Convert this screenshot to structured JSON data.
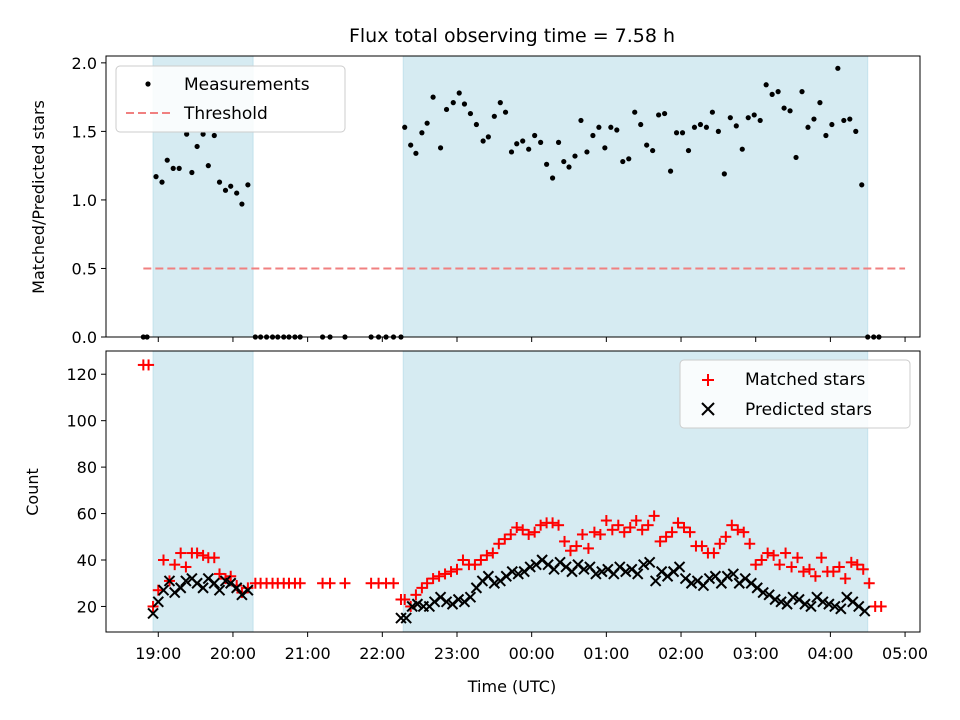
{
  "chart_data": [
    {
      "type": "scatter",
      "title": "Flux total observing time = 7.58 h",
      "xlabel": "",
      "ylabel": "Matched/Predicted stars",
      "xlim": [
        18.3,
        29.2
      ],
      "ylim": [
        0,
        2.05
      ],
      "yticks": [
        0.0,
        0.5,
        1.0,
        1.5,
        2.0
      ],
      "ytick_labels": [
        "0.0",
        "0.5",
        "1.0",
        "1.5",
        "2.0"
      ],
      "shaded_intervals": [
        [
          18.93,
          20.27
        ],
        [
          22.28,
          28.5
        ]
      ],
      "legend": {
        "placement": "upper-left",
        "entries": [
          "Measurements",
          "Threshold"
        ]
      },
      "threshold": {
        "name": "Threshold",
        "x": [
          18.8,
          29.0
        ],
        "y": 0.5,
        "color": "#f08080"
      },
      "series": [
        {
          "name": "Measurements",
          "marker": "dot",
          "color": "#000000",
          "x": [
            18.8,
            18.85,
            18.97,
            19.05,
            19.12,
            19.2,
            19.28,
            19.38,
            19.45,
            19.52,
            19.6,
            19.67,
            19.75,
            19.82,
            19.9,
            19.97,
            20.05,
            20.12,
            20.2,
            20.3,
            20.37,
            20.45,
            20.53,
            20.6,
            20.68,
            20.75,
            20.83,
            20.9,
            21.2,
            21.3,
            21.5,
            21.85,
            21.95,
            22.05,
            22.15,
            22.25,
            22.3,
            22.38,
            22.45,
            22.53,
            22.6,
            22.68,
            22.78,
            22.86,
            22.95,
            23.03,
            23.1,
            23.18,
            23.26,
            23.35,
            23.42,
            23.5,
            23.58,
            23.65,
            23.73,
            23.8,
            23.88,
            23.96,
            24.04,
            24.12,
            24.2,
            24.28,
            24.36,
            24.43,
            24.5,
            24.58,
            24.66,
            24.74,
            24.82,
            24.9,
            24.98,
            25.06,
            25.14,
            25.22,
            25.3,
            25.38,
            25.46,
            25.54,
            25.62,
            25.7,
            25.78,
            25.86,
            25.94,
            26.02,
            26.1,
            26.18,
            26.26,
            26.34,
            26.42,
            26.5,
            26.58,
            26.66,
            26.74,
            26.82,
            26.9,
            26.98,
            27.06,
            27.14,
            27.22,
            27.3,
            27.38,
            27.46,
            27.54,
            27.62,
            27.7,
            27.78,
            27.86,
            27.94,
            28.02,
            28.1,
            28.18,
            28.26,
            28.34,
            28.42,
            28.5,
            28.58,
            28.65
          ],
          "y": [
            0,
            0,
            1.17,
            1.13,
            1.29,
            1.23,
            1.23,
            1.48,
            1.2,
            1.39,
            1.48,
            1.25,
            1.47,
            1.13,
            1.07,
            1.1,
            1.05,
            0.97,
            1.11,
            0,
            0,
            0,
            0,
            0,
            0,
            0,
            0,
            0,
            0,
            0,
            0,
            0,
            0,
            0,
            0,
            0,
            1.53,
            1.4,
            1.34,
            1.49,
            1.56,
            1.75,
            1.38,
            1.66,
            1.71,
            1.78,
            1.7,
            1.63,
            1.55,
            1.43,
            1.46,
            1.61,
            1.71,
            1.64,
            1.35,
            1.41,
            1.43,
            1.37,
            1.47,
            1.42,
            1.26,
            1.16,
            1.42,
            1.28,
            1.24,
            1.32,
            1.58,
            1.35,
            1.47,
            1.53,
            1.38,
            1.53,
            1.51,
            1.28,
            1.3,
            1.64,
            1.55,
            1.4,
            1.36,
            1.62,
            1.63,
            1.21,
            1.49,
            1.49,
            1.36,
            1.53,
            1.55,
            1.53,
            1.64,
            1.5,
            1.19,
            1.6,
            1.54,
            1.37,
            1.6,
            1.62,
            1.58,
            1.84,
            1.77,
            1.79,
            1.67,
            1.65,
            1.31,
            1.79,
            1.53,
            1.59,
            1.71,
            1.47,
            1.55,
            1.96,
            1.58,
            1.59,
            1.5,
            1.11,
            0,
            0,
            0
          ]
        }
      ]
    },
    {
      "type": "scatter",
      "title": "",
      "xlabel": "Time (UTC)",
      "ylabel": "Count",
      "xlim": [
        18.3,
        29.2
      ],
      "ylim": [
        9,
        130
      ],
      "yticks": [
        20,
        40,
        60,
        80,
        100,
        120
      ],
      "ytick_labels": [
        "20",
        "40",
        "60",
        "80",
        "100",
        "120"
      ],
      "xticks": [
        19,
        20,
        21,
        22,
        23,
        24,
        25,
        26,
        27,
        28,
        29
      ],
      "xtick_labels": [
        "19:00",
        "20:00",
        "21:00",
        "22:00",
        "23:00",
        "00:00",
        "01:00",
        "02:00",
        "03:00",
        "04:00",
        "05:00"
      ],
      "shaded_intervals": [
        [
          18.93,
          20.27
        ],
        [
          22.28,
          28.5
        ]
      ],
      "legend": {
        "placement": "upper-right",
        "entries": [
          "Matched stars",
          "Predicted stars"
        ]
      },
      "series": [
        {
          "name": "Matched stars",
          "marker": "plus",
          "color": "#ff0000",
          "x": [
            18.8,
            18.87,
            18.93,
            19.0,
            19.07,
            19.15,
            19.22,
            19.3,
            19.37,
            19.45,
            19.52,
            19.6,
            19.67,
            19.75,
            19.82,
            19.9,
            19.97,
            20.05,
            20.12,
            20.2,
            20.3,
            20.37,
            20.45,
            20.53,
            20.6,
            20.68,
            20.75,
            20.83,
            20.9,
            21.2,
            21.3,
            21.5,
            21.85,
            21.95,
            22.05,
            22.15,
            22.25,
            22.3,
            22.38,
            22.45,
            22.53,
            22.6,
            22.68,
            22.76,
            22.84,
            22.92,
            23.0,
            23.08,
            23.16,
            23.24,
            23.32,
            23.4,
            23.48,
            23.56,
            23.64,
            23.72,
            23.8,
            23.88,
            23.96,
            24.04,
            24.12,
            24.2,
            24.28,
            24.36,
            24.44,
            24.52,
            24.6,
            24.68,
            24.76,
            24.84,
            24.92,
            25.0,
            25.08,
            25.16,
            25.24,
            25.32,
            25.4,
            25.48,
            25.56,
            25.64,
            25.72,
            25.8,
            25.88,
            25.96,
            26.04,
            26.12,
            26.2,
            26.28,
            26.36,
            26.44,
            26.52,
            26.6,
            26.68,
            26.76,
            26.84,
            26.92,
            27.0,
            27.08,
            27.16,
            27.24,
            27.32,
            27.4,
            27.48,
            27.56,
            27.64,
            27.72,
            27.8,
            27.88,
            27.96,
            28.04,
            28.12,
            28.2,
            28.28,
            28.36,
            28.44,
            28.52,
            28.6,
            28.68
          ],
          "y": [
            124,
            124,
            20,
            27,
            40,
            31,
            38,
            43,
            37,
            43,
            43,
            42,
            41,
            41,
            34,
            32,
            33,
            29,
            26,
            28,
            30,
            30,
            30,
            30,
            30,
            30,
            30,
            30,
            30,
            30,
            30,
            30,
            30,
            30,
            30,
            30,
            23,
            23,
            20,
            25,
            28,
            30,
            32,
            33,
            34,
            35,
            36,
            40,
            38,
            38,
            40,
            42,
            43,
            47,
            49,
            51,
            54,
            53,
            51,
            52,
            55,
            56,
            56,
            55,
            48,
            44,
            46,
            51,
            45,
            52,
            51,
            57,
            53,
            55,
            52,
            54,
            57,
            53,
            55,
            59,
            48,
            50,
            52,
            56,
            54,
            52,
            46,
            46,
            43,
            43,
            47,
            50,
            55,
            53,
            52,
            47,
            38,
            40,
            43,
            42,
            38,
            43,
            37,
            41,
            35,
            36,
            33,
            41,
            35,
            35,
            37,
            32,
            39,
            38,
            36,
            30,
            20,
            20
          ]
        },
        {
          "name": "Predicted stars",
          "marker": "x",
          "color": "#000000",
          "x": [
            18.93,
            19.0,
            19.07,
            19.15,
            19.22,
            19.3,
            19.37,
            19.45,
            19.52,
            19.6,
            19.67,
            19.75,
            19.82,
            19.9,
            19.97,
            20.05,
            20.12,
            20.2,
            22.25,
            22.32,
            22.4,
            22.47,
            22.55,
            22.63,
            22.7,
            22.78,
            22.86,
            22.94,
            23.02,
            23.1,
            23.18,
            23.26,
            23.34,
            23.42,
            23.5,
            23.58,
            23.66,
            23.74,
            23.82,
            23.9,
            23.98,
            24.06,
            24.14,
            24.22,
            24.3,
            24.38,
            24.46,
            24.54,
            24.62,
            24.7,
            24.78,
            24.86,
            24.94,
            25.02,
            25.1,
            25.18,
            25.26,
            25.34,
            25.42,
            25.5,
            25.58,
            25.66,
            25.74,
            25.82,
            25.9,
            25.98,
            26.06,
            26.14,
            26.22,
            26.3,
            26.38,
            26.46,
            26.54,
            26.62,
            26.7,
            26.78,
            26.86,
            26.94,
            27.02,
            27.1,
            27.18,
            27.26,
            27.34,
            27.42,
            27.5,
            27.58,
            27.66,
            27.74,
            27.82,
            27.9,
            27.98,
            28.06,
            28.14,
            28.22,
            28.3,
            28.38,
            28.46
          ],
          "y": [
            17,
            22,
            27,
            31,
            26,
            28,
            31,
            32,
            30,
            28,
            32,
            30,
            27,
            31,
            30,
            28,
            25,
            27,
            15,
            15,
            20,
            21,
            20,
            20,
            22,
            24,
            22,
            21,
            23,
            22,
            24,
            28,
            31,
            33,
            30,
            31,
            33,
            35,
            34,
            35,
            37,
            38,
            40,
            38,
            36,
            39,
            37,
            35,
            38,
            36,
            37,
            34,
            35,
            36,
            34,
            37,
            35,
            36,
            34,
            38,
            39,
            31,
            35,
            33,
            35,
            37,
            32,
            30,
            31,
            29,
            32,
            33,
            30,
            33,
            34,
            30,
            32,
            30,
            28,
            26,
            25,
            23,
            22,
            21,
            24,
            23,
            21,
            20,
            24,
            22,
            21,
            20,
            19,
            24,
            22,
            20,
            18
          ]
        }
      ]
    }
  ]
}
